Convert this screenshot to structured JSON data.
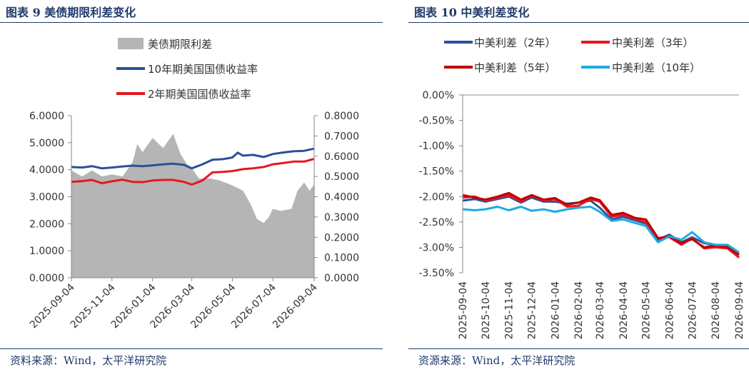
{
  "chart_data": [
    {
      "type": "area+line",
      "title": "图表 9  美债期限利差变化",
      "source": "资料来源：Wind，太平洋研究院",
      "x_ticks": [
        "2025-09-04",
        "2025-11-04",
        "2026-01-04",
        "2026-03-04",
        "2026-05-04",
        "2026-07-04",
        "2026-09-04"
      ],
      "y_left": {
        "min": 0,
        "max": 6,
        "ticks": [
          "0.0000",
          "1.0000",
          "2.0000",
          "3.0000",
          "4.0000",
          "5.0000",
          "6.0000"
        ]
      },
      "y_right": {
        "min": 0,
        "max": 0.8,
        "ticks": [
          "0.0000",
          "0.1000",
          "0.2000",
          "0.3000",
          "0.4000",
          "0.5000",
          "0.6000",
          "0.7000",
          "0.8000"
        ]
      },
      "grid": false,
      "legend_position": "top",
      "series": [
        {
          "name": "美债期限利差",
          "kind": "area",
          "axis": "right",
          "color": "#B5B5B5",
          "x": [
            "2025-09-04",
            "2025-09-20",
            "2025-10-05",
            "2025-10-20",
            "2025-11-04",
            "2025-11-20",
            "2025-12-05",
            "2025-12-12",
            "2025-12-20",
            "2026-01-04",
            "2026-01-20",
            "2026-02-04",
            "2026-02-15",
            "2026-02-25",
            "2026-03-04",
            "2026-03-15",
            "2026-04-01",
            "2026-04-15",
            "2026-05-01",
            "2026-05-20",
            "2026-06-01",
            "2026-06-10",
            "2026-06-20",
            "2026-06-28",
            "2026-07-04",
            "2026-07-15",
            "2026-08-01",
            "2026-08-10",
            "2026-08-20",
            "2026-08-28",
            "2026-09-04"
          ],
          "values": [
            0.53,
            0.5,
            0.53,
            0.5,
            0.51,
            0.5,
            0.57,
            0.66,
            0.62,
            0.69,
            0.64,
            0.71,
            0.61,
            0.56,
            0.54,
            0.49,
            0.49,
            0.48,
            0.46,
            0.43,
            0.36,
            0.29,
            0.27,
            0.3,
            0.34,
            0.33,
            0.34,
            0.43,
            0.47,
            0.43,
            0.46
          ]
        },
        {
          "name": "10年期美国国债收益率",
          "kind": "line",
          "axis": "left",
          "color": "#2E4F9A",
          "x": [
            "2025-09-04",
            "2025-09-20",
            "2025-10-05",
            "2025-10-20",
            "2025-11-04",
            "2025-11-20",
            "2025-12-05",
            "2025-12-20",
            "2026-01-04",
            "2026-01-20",
            "2026-02-04",
            "2026-02-20",
            "2026-03-04",
            "2026-03-20",
            "2026-04-04",
            "2026-04-20",
            "2026-05-04",
            "2026-05-12",
            "2026-05-20",
            "2026-06-04",
            "2026-06-20",
            "2026-07-04",
            "2026-07-20",
            "2026-08-04",
            "2026-08-20",
            "2026-09-04"
          ],
          "values": [
            4.1,
            4.08,
            4.13,
            4.05,
            4.08,
            4.12,
            4.15,
            4.13,
            4.16,
            4.2,
            4.22,
            4.18,
            4.05,
            4.2,
            4.37,
            4.39,
            4.45,
            4.63,
            4.52,
            4.55,
            4.47,
            4.58,
            4.64,
            4.68,
            4.7,
            4.78
          ]
        },
        {
          "name": "2年期美国国债收益率",
          "kind": "line",
          "axis": "left",
          "color": "#E8161E",
          "x": [
            "2025-09-04",
            "2025-09-20",
            "2025-10-05",
            "2025-10-20",
            "2025-11-04",
            "2025-11-20",
            "2025-12-05",
            "2025-12-20",
            "2026-01-04",
            "2026-01-20",
            "2026-02-04",
            "2026-02-20",
            "2026-03-04",
            "2026-03-20",
            "2026-04-04",
            "2026-04-20",
            "2026-05-04",
            "2026-05-20",
            "2026-06-04",
            "2026-06-20",
            "2026-07-04",
            "2026-07-20",
            "2026-08-04",
            "2026-08-20",
            "2026-09-04"
          ],
          "values": [
            3.55,
            3.58,
            3.62,
            3.5,
            3.57,
            3.63,
            3.55,
            3.54,
            3.6,
            3.62,
            3.62,
            3.55,
            3.45,
            3.6,
            3.9,
            3.92,
            3.95,
            4.02,
            4.05,
            4.1,
            4.2,
            4.25,
            4.3,
            4.3,
            4.4
          ]
        }
      ]
    },
    {
      "type": "line",
      "title": "图表 10  中美利差变化",
      "source": "资源来源：Wind，太平洋研究院",
      "x_ticks": [
        "2025-09-04",
        "2025-10-04",
        "2025-11-04",
        "2025-12-04",
        "2026-01-04",
        "2026-02-04",
        "2026-03-04",
        "2026-04-04",
        "2026-05-04",
        "2026-06-04",
        "2026-07-04",
        "2026-08-04",
        "2026-09-04"
      ],
      "y": {
        "min": -3.5,
        "max": 0,
        "ticks": [
          "0.00%",
          "-0.50%",
          "-1.00%",
          "-1.50%",
          "-2.00%",
          "-2.50%",
          "-3.00%",
          "-3.50%"
        ]
      },
      "grid": false,
      "legend_position": "top",
      "series": [
        {
          "name": "中美利差（2年）",
          "color": "#2E4F9A",
          "x": [
            "2025-09-04",
            "2025-09-20",
            "2025-10-04",
            "2025-10-20",
            "2025-11-04",
            "2025-11-20",
            "2025-12-04",
            "2025-12-20",
            "2026-01-04",
            "2026-01-20",
            "2026-02-04",
            "2026-02-20",
            "2026-03-04",
            "2026-03-20",
            "2026-04-04",
            "2026-04-20",
            "2026-05-04",
            "2026-05-20",
            "2026-06-04",
            "2026-06-20",
            "2026-07-04",
            "2026-07-20",
            "2026-08-04",
            "2026-08-20",
            "2026-09-04"
          ],
          "values": [
            -2.08,
            -2.05,
            -2.1,
            -2.05,
            -2.0,
            -2.12,
            -2.02,
            -2.1,
            -2.1,
            -2.14,
            -2.12,
            -2.08,
            -2.22,
            -2.45,
            -2.4,
            -2.47,
            -2.53,
            -2.85,
            -2.75,
            -2.9,
            -2.8,
            -2.92,
            -2.95,
            -2.98,
            -3.12
          ]
        },
        {
          "name": "中美利差（3年）",
          "color": "#E8161E",
          "x": [
            "2025-09-04",
            "2025-09-20",
            "2025-10-04",
            "2025-10-20",
            "2025-11-04",
            "2025-11-20",
            "2025-12-04",
            "2025-12-20",
            "2026-01-04",
            "2026-01-20",
            "2026-02-04",
            "2026-02-20",
            "2026-03-04",
            "2026-03-20",
            "2026-04-04",
            "2026-04-20",
            "2026-05-04",
            "2026-05-20",
            "2026-06-04",
            "2026-06-20",
            "2026-07-04",
            "2026-07-20",
            "2026-08-04",
            "2026-08-20",
            "2026-09-04"
          ],
          "values": [
            -2.02,
            -2.0,
            -2.08,
            -2.02,
            -1.97,
            -2.1,
            -1.98,
            -2.08,
            -2.05,
            -2.2,
            -2.18,
            -2.05,
            -2.1,
            -2.4,
            -2.36,
            -2.44,
            -2.5,
            -2.82,
            -2.8,
            -2.95,
            -2.82,
            -3.02,
            -3.0,
            -3.02,
            -3.2
          ]
        },
        {
          "name": "中美利差（5年）",
          "color": "#C00000",
          "x": [
            "2025-09-04",
            "2025-09-20",
            "2025-10-04",
            "2025-10-20",
            "2025-11-04",
            "2025-11-20",
            "2025-12-04",
            "2025-12-20",
            "2026-01-04",
            "2026-01-20",
            "2026-02-04",
            "2026-02-20",
            "2026-03-04",
            "2026-03-20",
            "2026-04-04",
            "2026-04-20",
            "2026-05-04",
            "2026-05-20",
            "2026-06-04",
            "2026-06-20",
            "2026-07-04",
            "2026-07-20",
            "2026-08-04",
            "2026-08-20",
            "2026-09-04"
          ],
          "values": [
            -1.97,
            -2.02,
            -2.06,
            -2.0,
            -1.93,
            -2.06,
            -1.97,
            -2.06,
            -2.03,
            -2.16,
            -2.12,
            -2.02,
            -2.07,
            -2.36,
            -2.32,
            -2.42,
            -2.45,
            -2.82,
            -2.78,
            -2.92,
            -2.84,
            -3.0,
            -2.96,
            -3.0,
            -3.15
          ]
        },
        {
          "name": "中美利差（10年）",
          "color": "#1FA9E1",
          "x": [
            "2025-09-04",
            "2025-09-20",
            "2025-10-04",
            "2025-10-20",
            "2025-11-04",
            "2025-11-20",
            "2025-12-04",
            "2025-12-20",
            "2026-01-04",
            "2026-01-20",
            "2026-02-04",
            "2026-02-20",
            "2026-03-04",
            "2026-03-20",
            "2026-04-04",
            "2026-04-20",
            "2026-05-04",
            "2026-05-20",
            "2026-06-04",
            "2026-06-20",
            "2026-07-04",
            "2026-07-20",
            "2026-08-04",
            "2026-08-20",
            "2026-09-04"
          ],
          "values": [
            -2.25,
            -2.27,
            -2.25,
            -2.2,
            -2.27,
            -2.2,
            -2.28,
            -2.25,
            -2.3,
            -2.25,
            -2.22,
            -2.2,
            -2.3,
            -2.48,
            -2.45,
            -2.52,
            -2.58,
            -2.9,
            -2.78,
            -2.85,
            -2.7,
            -2.9,
            -2.95,
            -2.95,
            -3.1
          ]
        }
      ]
    }
  ]
}
